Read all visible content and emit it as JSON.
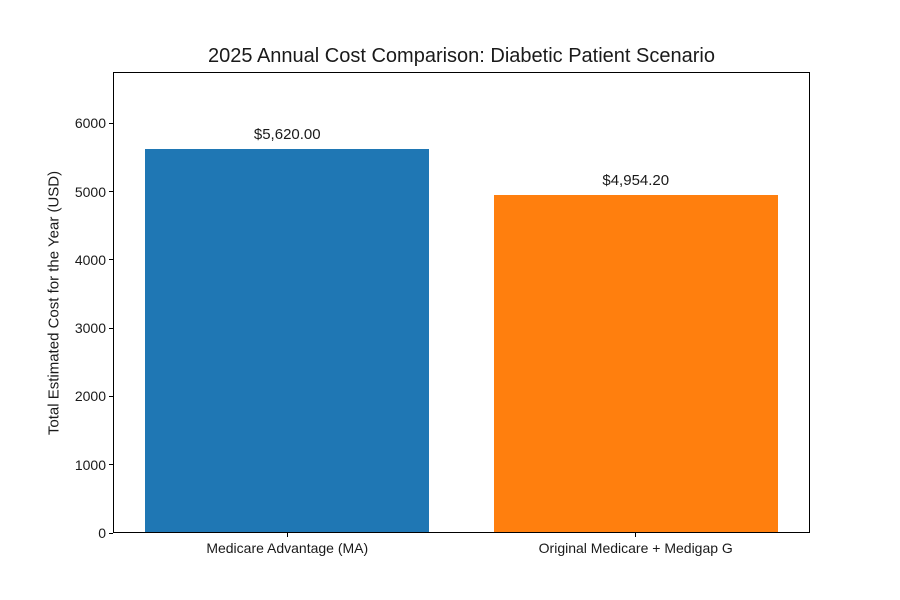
{
  "chart_data": {
    "type": "bar",
    "title": "2025 Annual Cost Comparison: Diabetic Patient Scenario",
    "ylabel": "Total Estimated Cost for the Year (USD)",
    "xlabel": "",
    "categories": [
      "Medicare Advantage (MA)",
      "Original Medicare + Medigap G"
    ],
    "values": [
      5620.0,
      4954.2
    ],
    "bar_labels": [
      "$5,620.00",
      "$4,954.20"
    ],
    "bar_colors": [
      "#1f77b4",
      "#ff7f0e"
    ],
    "ylim": [
      0,
      6750
    ],
    "yticks": [
      0,
      1000,
      2000,
      3000,
      4000,
      5000,
      6000
    ],
    "grid": false,
    "legend_position": "none",
    "background_color": "#ffffff",
    "spine_color": "#000000",
    "text_color": "#1a1a1a"
  }
}
